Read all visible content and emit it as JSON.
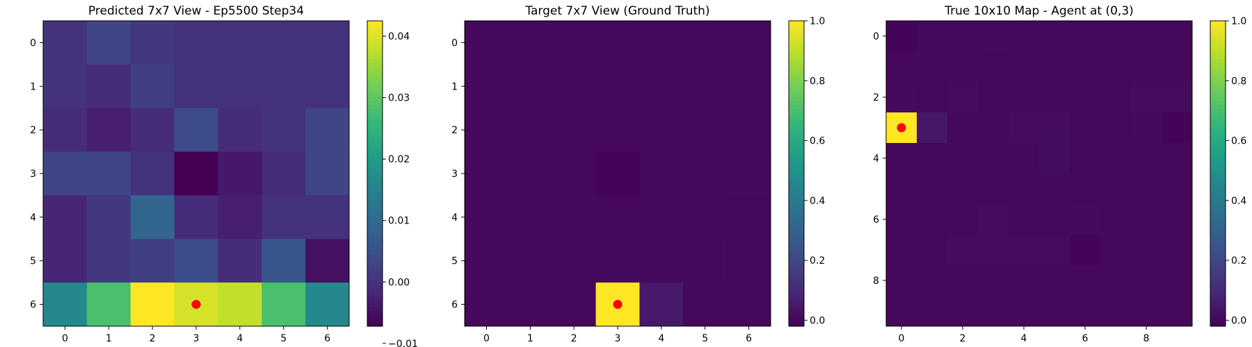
{
  "colormap": "viridis",
  "marker_color": "#ff0000",
  "chart_data": [
    {
      "type": "heatmap",
      "title": "Predicted 7x7 View - Ep5500 Step34",
      "rows": 7,
      "cols": 7,
      "xticks": [
        0,
        1,
        2,
        3,
        4,
        5,
        6
      ],
      "yticks": [
        0,
        1,
        2,
        3,
        4,
        5,
        6
      ],
      "vmin": -0.0072,
      "vmax": 0.0425,
      "colorbar_ticks": [
        -0.01,
        0.0,
        0.01,
        0.02,
        0.03,
        0.04
      ],
      "colorbar_labels": [
        "−0.01",
        "0.00",
        "0.01",
        "0.02",
        "0.03",
        "0.04"
      ],
      "values": [
        [
          0.0,
          0.003,
          0.001,
          0.0,
          0.0,
          0.0,
          0.0
        ],
        [
          0.0,
          -0.001,
          0.002,
          0.0,
          0.0,
          0.0,
          0.0
        ],
        [
          -0.001,
          -0.003,
          -0.001,
          0.004,
          -0.001,
          0.0,
          0.003
        ],
        [
          0.003,
          0.003,
          0.0,
          -0.0072,
          -0.004,
          -0.001,
          0.003
        ],
        [
          -0.002,
          0.001,
          0.009,
          -0.001,
          -0.003,
          0.0,
          0.0
        ],
        [
          -0.002,
          0.001,
          0.002,
          0.004,
          -0.001,
          0.006,
          -0.005
        ],
        [
          0.016,
          0.028,
          0.0425,
          0.0395,
          0.038,
          0.028,
          0.016
        ]
      ],
      "marker": {
        "row": 6,
        "col": 3
      }
    },
    {
      "type": "heatmap",
      "title": "Target 7x7 View (Ground Truth)",
      "rows": 7,
      "cols": 7,
      "xticks": [
        0,
        1,
        2,
        3,
        4,
        5,
        6
      ],
      "yticks": [
        0,
        1,
        2,
        3,
        4,
        5,
        6
      ],
      "vmin": -0.02,
      "vmax": 1.0,
      "colorbar_ticks": [
        0.0,
        0.2,
        0.4,
        0.6,
        0.8,
        1.0
      ],
      "colorbar_labels": [
        "0.0",
        "0.2",
        "0.4",
        "0.6",
        "0.8",
        "1.0"
      ],
      "values": [
        [
          0,
          0,
          0,
          0,
          0,
          0,
          0
        ],
        [
          0,
          0,
          0,
          0,
          0,
          0,
          0
        ],
        [
          0,
          0,
          0,
          0,
          0,
          0,
          0
        ],
        [
          0,
          0,
          0,
          -0.01,
          0,
          0,
          0.005
        ],
        [
          0,
          0,
          0,
          0,
          0,
          0,
          0
        ],
        [
          0,
          0,
          0,
          0.003,
          0.005,
          0.006,
          0
        ],
        [
          0,
          0,
          0,
          1.0,
          0.05,
          0,
          0
        ]
      ],
      "marker": {
        "row": 6,
        "col": 3
      }
    },
    {
      "type": "heatmap",
      "title": "True 10x10 Map - Agent at (0,3)",
      "rows": 10,
      "cols": 10,
      "xticks": [
        0,
        2,
        4,
        6,
        8
      ],
      "yticks": [
        0,
        2,
        4,
        6,
        8
      ],
      "vmin": -0.02,
      "vmax": 1.0,
      "colorbar_ticks": [
        0.0,
        0.2,
        0.4,
        0.6,
        0.8,
        1.0
      ],
      "colorbar_labels": [
        "0.0",
        "0.2",
        "0.4",
        "0.6",
        "0.8",
        "1.0"
      ],
      "values": [
        [
          -0.01,
          0.003,
          0.003,
          0.005,
          0,
          0,
          0,
          0,
          0,
          0
        ],
        [
          0,
          0,
          0,
          0,
          0,
          0,
          0,
          0,
          0,
          0
        ],
        [
          0.006,
          0.003,
          0.008,
          0,
          0,
          0,
          0,
          0,
          0.01,
          0.008
        ],
        [
          1.0,
          0.04,
          0,
          0,
          0.01,
          0.012,
          0,
          0,
          0.005,
          -0.012
        ],
        [
          0,
          0,
          0,
          0,
          0,
          0.014,
          0,
          0,
          0,
          0
        ],
        [
          0,
          0,
          0,
          0,
          0,
          0,
          0,
          0,
          0,
          0
        ],
        [
          0,
          0,
          0,
          0.01,
          0,
          0,
          0.006,
          0.002,
          0,
          0
        ],
        [
          0,
          0,
          0.012,
          0.008,
          0.008,
          0.008,
          -0.008,
          0,
          0,
          0
        ],
        [
          0,
          0,
          0,
          0,
          0,
          0,
          0,
          0,
          0,
          0
        ],
        [
          0,
          0,
          0,
          0,
          0,
          0,
          0,
          0,
          0,
          0
        ]
      ],
      "marker": {
        "row": 3,
        "col": 0
      }
    }
  ]
}
